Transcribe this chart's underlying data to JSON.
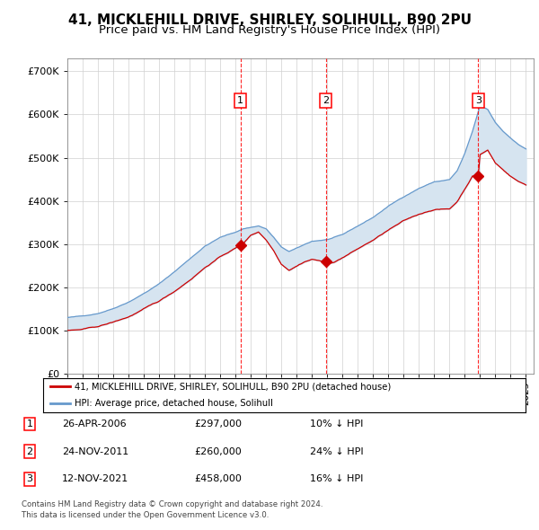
{
  "title": "41, MICKLEHILL DRIVE, SHIRLEY, SOLIHULL, B90 2PU",
  "subtitle": "Price paid vs. HM Land Registry's House Price Index (HPI)",
  "xlim_start": 1995.0,
  "xlim_end": 2025.5,
  "ylim": [
    0,
    730000
  ],
  "yticks": [
    0,
    100000,
    200000,
    300000,
    400000,
    500000,
    600000,
    700000
  ],
  "ytick_labels": [
    "£0",
    "£100K",
    "£200K",
    "£300K",
    "£400K",
    "£500K",
    "£600K",
    "£700K"
  ],
  "transactions": [
    {
      "date_year": 2006.32,
      "price": 297000,
      "label": "1"
    },
    {
      "date_year": 2011.9,
      "price": 260000,
      "label": "2"
    },
    {
      "date_year": 2021.87,
      "price": 458000,
      "label": "3"
    }
  ],
  "transaction_table": [
    {
      "num": "1",
      "date": "26-APR-2006",
      "price": "£297,000",
      "hpi": "10% ↓ HPI"
    },
    {
      "num": "2",
      "date": "24-NOV-2011",
      "price": "£260,000",
      "hpi": "24% ↓ HPI"
    },
    {
      "num": "3",
      "date": "12-NOV-2021",
      "price": "£458,000",
      "hpi": "16% ↓ HPI"
    }
  ],
  "legend_red_label": "41, MICKLEHILL DRIVE, SHIRLEY, SOLIHULL, B90 2PU (detached house)",
  "legend_blue_label": "HPI: Average price, detached house, Solihull",
  "footer_line1": "Contains HM Land Registry data © Crown copyright and database right 2024.",
  "footer_line2": "This data is licensed under the Open Government Licence v3.0.",
  "hpi_color": "#6699cc",
  "price_color": "#cc0000",
  "shading_color": "#d6e4f0",
  "vline_color": "#ff0000",
  "title_fontsize": 11,
  "subtitle_fontsize": 9.5,
  "tick_fontsize": 8
}
